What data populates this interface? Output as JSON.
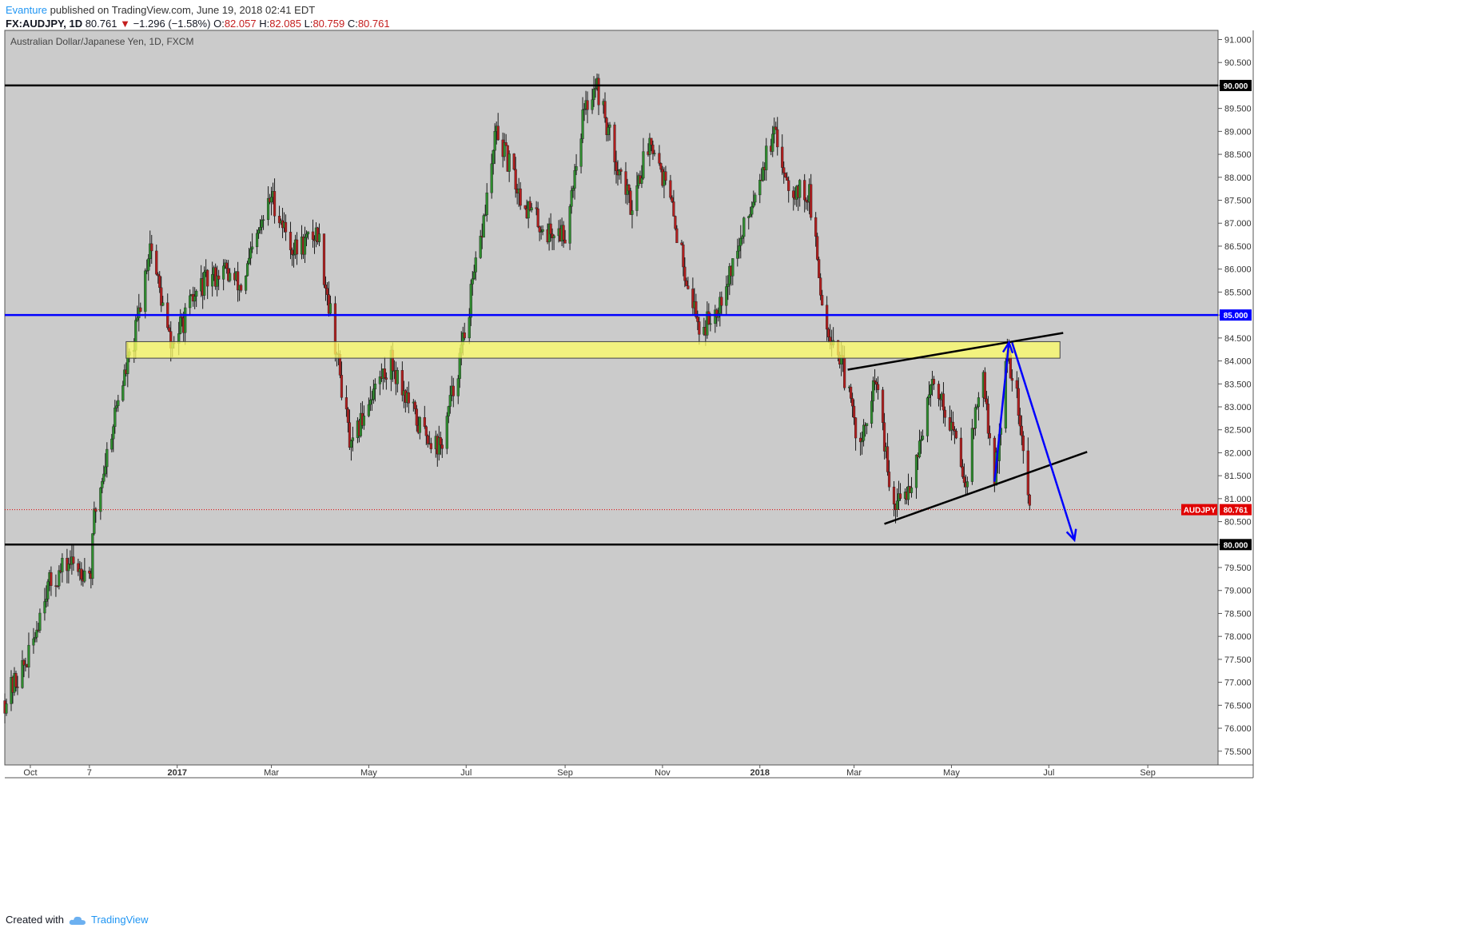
{
  "header": {
    "author": "Evanture",
    "published_text": "published on TradingView.com, June 19, 2018 02:41 EDT",
    "symbol": "FX:AUDJPY, 1D",
    "last": "80.761",
    "change_arrow": "▼",
    "change": "−1.296 (−1.58%)",
    "o_label": "O:",
    "o": "82.057",
    "h_label": "H:",
    "h": "82.085",
    "l_label": "L:",
    "l": "80.759",
    "c_label": "C:",
    "c": "80.761"
  },
  "footer": {
    "created_with": "Created with",
    "brand": "TradingView",
    "logo_icon": "tradingview-cloud-icon"
  },
  "chart_data": {
    "type": "candlestick",
    "title": "Australian Dollar/Japanese Yen, 1D, FXCM",
    "ylim": [
      75.2,
      91.2
    ],
    "y_ticks": [
      "91.000",
      "90.500",
      "90.000",
      "89.500",
      "89.000",
      "88.500",
      "88.000",
      "87.500",
      "87.000",
      "86.500",
      "86.000",
      "85.500",
      "85.000",
      "84.500",
      "84.000",
      "83.500",
      "83.000",
      "82.500",
      "82.000",
      "81.500",
      "81.000",
      "80.500",
      "80.000",
      "79.500",
      "79.000",
      "78.500",
      "78.000",
      "77.500",
      "77.000",
      "76.500",
      "76.000",
      "75.500"
    ],
    "x_range": [
      "2016-09-15",
      "2018-10-15"
    ],
    "x_ticks": [
      {
        "label": "Oct",
        "date": "2016-10-01"
      },
      {
        "label": "7",
        "date": "2016-11-07"
      },
      {
        "label": "2017",
        "date": "2017-01-01"
      },
      {
        "label": "Mar",
        "date": "2017-03-01"
      },
      {
        "label": "May",
        "date": "2017-05-01"
      },
      {
        "label": "Jul",
        "date": "2017-07-01"
      },
      {
        "label": "Sep",
        "date": "2017-09-01"
      },
      {
        "label": "Nov",
        "date": "2017-11-01"
      },
      {
        "label": "2018",
        "date": "2018-01-01"
      },
      {
        "label": "Mar",
        "date": "2018-03-01"
      },
      {
        "label": "May",
        "date": "2018-05-01"
      },
      {
        "label": "Jul",
        "date": "2018-07-01"
      },
      {
        "label": "Sep",
        "date": "2018-09-01"
      }
    ],
    "price_path": [
      [
        "2016-09-15",
        76.6
      ],
      [
        "2016-10-01",
        77.6
      ],
      [
        "2016-10-10",
        79.0
      ],
      [
        "2016-10-25",
        79.6
      ],
      [
        "2016-11-08",
        79.4
      ],
      [
        "2016-11-10",
        80.6
      ],
      [
        "2016-11-25",
        83.2
      ],
      [
        "2016-12-05",
        84.4
      ],
      [
        "2016-12-15",
        86.6
      ],
      [
        "2016-12-28",
        84.3
      ],
      [
        "2017-01-15",
        85.6
      ],
      [
        "2017-01-30",
        86.0
      ],
      [
        "2017-02-10",
        85.6
      ],
      [
        "2017-03-01",
        87.6
      ],
      [
        "2017-03-15",
        86.4
      ],
      [
        "2017-03-30",
        86.8
      ],
      [
        "2017-04-10",
        84.4
      ],
      [
        "2017-04-20",
        82.0
      ],
      [
        "2017-05-01",
        83.2
      ],
      [
        "2017-05-15",
        84.0
      ],
      [
        "2017-06-01",
        82.6
      ],
      [
        "2017-06-15",
        82.1
      ],
      [
        "2017-06-28",
        84.2
      ],
      [
        "2017-07-10",
        86.6
      ],
      [
        "2017-07-20",
        89.0
      ],
      [
        "2017-08-05",
        87.5
      ],
      [
        "2017-08-20",
        86.8
      ],
      [
        "2017-09-01",
        86.8
      ],
      [
        "2017-09-12",
        89.3
      ],
      [
        "2017-09-20",
        90.1
      ],
      [
        "2017-10-01",
        88.6
      ],
      [
        "2017-10-12",
        87.4
      ],
      [
        "2017-10-25",
        88.9
      ],
      [
        "2017-11-05",
        87.6
      ],
      [
        "2017-11-15",
        86.0
      ],
      [
        "2017-11-25",
        84.6
      ],
      [
        "2017-12-05",
        85.2
      ],
      [
        "2017-12-20",
        86.6
      ],
      [
        "2018-01-01",
        88.1
      ],
      [
        "2018-01-10",
        88.9
      ],
      [
        "2018-01-20",
        87.8
      ],
      [
        "2018-02-01",
        87.6
      ],
      [
        "2018-02-10",
        85.0
      ],
      [
        "2018-02-20",
        84.1
      ],
      [
        "2018-03-05",
        82.1
      ],
      [
        "2018-03-15",
        83.6
      ],
      [
        "2018-03-25",
        80.7
      ],
      [
        "2018-04-05",
        81.3
      ],
      [
        "2018-04-20",
        83.6
      ],
      [
        "2018-05-01",
        82.6
      ],
      [
        "2018-05-10",
        81.4
      ],
      [
        "2018-05-20",
        83.8
      ],
      [
        "2018-05-28",
        81.4
      ],
      [
        "2018-06-05",
        84.1
      ],
      [
        "2018-06-10",
        83.5
      ],
      [
        "2018-06-19",
        80.76
      ]
    ],
    "horizontal_lines": [
      {
        "value": 90.0,
        "label": "90.000",
        "color": "#000000"
      },
      {
        "value": 85.0,
        "label": "85.000",
        "color": "#0000ff"
      },
      {
        "value": 80.0,
        "label": "80.000",
        "color": "#000000"
      }
    ],
    "last_price": {
      "value": 80.761,
      "label": "80.761",
      "symbol": "AUDJPY",
      "color": "#e00000"
    },
    "zone": {
      "from": "2016-11-30",
      "to": "2018-07-08",
      "low": 84.06,
      "high": 84.42,
      "color": "#ffff66"
    },
    "trend_lines": [
      {
        "from": [
          "2018-02-25",
          83.81
        ],
        "to": [
          "2018-07-10",
          84.61
        ],
        "color": "#000000"
      },
      {
        "from": [
          "2018-03-20",
          80.45
        ],
        "to": [
          "2018-07-25",
          82.02
        ],
        "color": "#000000"
      },
      {
        "from": [
          "2018-05-28",
          81.37
        ],
        "to": [
          "2018-06-06",
          84.4
        ],
        "color": "#0000ff"
      },
      {
        "from": [
          "2018-06-08",
          84.4
        ],
        "to": [
          "2018-07-17",
          80.1
        ],
        "color": "#0000ff"
      }
    ],
    "colors": {
      "background": "#cbcbcb",
      "up": "#2e8b2e",
      "down": "#b01e1e",
      "wick": "#1a1a1a",
      "axis_text": "#333333"
    }
  }
}
